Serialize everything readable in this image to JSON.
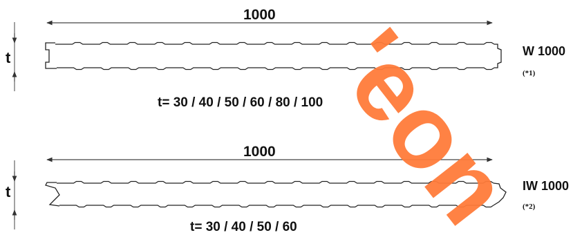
{
  "panels": [
    {
      "width_label": "1000",
      "thickness_symbol": "t",
      "name": "W 1000",
      "note": "(*1)",
      "thickness_values": "t= 30 / 40 / 50 / 60 / 80 / 100"
    },
    {
      "width_label": "1000",
      "thickness_symbol": "t",
      "name": "IW 1000",
      "note": "(*2)",
      "thickness_values": "t= 30 / 40 / 50 / 60"
    }
  ],
  "watermark": {
    "text": "'eon",
    "color": "#ff7b3a"
  }
}
